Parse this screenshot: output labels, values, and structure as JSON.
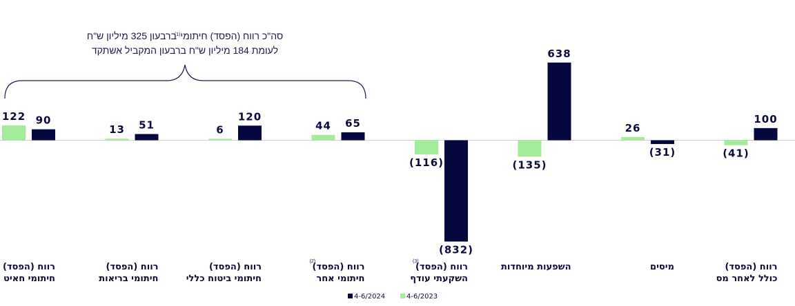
{
  "chart_data": {
    "type": "bar",
    "categories": [
      {
        "lines": [
          "רווח (הפסד)",
          "חיתומי חאיט"
        ],
        "sup": ""
      },
      {
        "lines": [
          "רווח (הפסד)",
          "חיתומי בריאות"
        ],
        "sup": ""
      },
      {
        "lines": [
          "רווח (הפסד)",
          "חיתומי ביטוח כללי"
        ],
        "sup": ""
      },
      {
        "lines": [
          "רווח (הפסד)",
          "חיתומי אחר"
        ],
        "sup": "(2)"
      },
      {
        "lines": [
          "רווח (הפסד)",
          "השקעתי עודף"
        ],
        "sup": "(3)"
      },
      {
        "lines": [
          "השפעות מיוחדות"
        ],
        "sup": ""
      },
      {
        "lines": [
          "מיסים"
        ],
        "sup": ""
      },
      {
        "lines": [
          "רווח (הפסד)",
          "כולל לאחר מס"
        ],
        "sup": ""
      }
    ],
    "series": [
      {
        "name": "4-6/2023",
        "color": "#a3ec9b",
        "values": [
          122,
          13,
          6,
          44,
          -116,
          -135,
          26,
          -41
        ],
        "labels": [
          "122",
          "13",
          "6",
          "44",
          "(116)",
          "(135)",
          "26",
          "(41)"
        ]
      },
      {
        "name": "4-6/2024",
        "color": "#07073f",
        "values": [
          90,
          51,
          120,
          65,
          -832,
          638,
          -31,
          100
        ],
        "labels": [
          "90",
          "51",
          "120",
          "65",
          "(832)",
          "638",
          "(31)",
          "100"
        ]
      }
    ],
    "legend_order": [
      1,
      0
    ],
    "ylim": [
      -832,
      638
    ],
    "annotation": {
      "line1_a": "סה\"כ רווח (הפסד) חיתומי",
      "line1_sup": "(1)",
      "line1_b": "ברבעון 325 מיליון ש\"ח",
      "line2": "לעומת 184 מיליון ש\"ח ברבעון המקביל אשתקד"
    }
  }
}
